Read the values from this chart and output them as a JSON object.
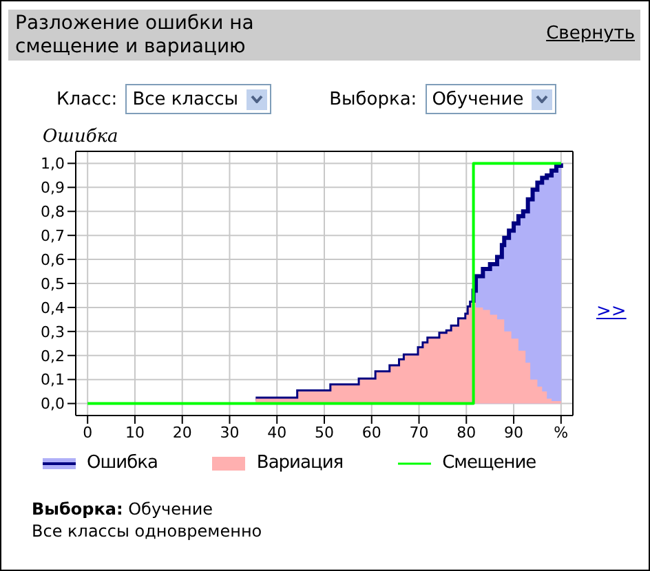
{
  "chart_data": {
    "type": "area",
    "title": "Разложение ошибки на смещение и вариацию",
    "ylabel": "Ошибка",
    "annotations": [
      "Свернуть",
      "Класс:",
      "Все классы",
      "Выборка:",
      "Обучение",
      ">>",
      "Выборка:",
      "Обучение",
      "Все классы одновременно"
    ],
    "xlim": [
      -2.5,
      102.5
    ],
    "xticks": [
      0,
      10,
      20,
      30,
      40,
      50,
      60,
      70,
      80,
      90,
      {
        "value": 100,
        "label": "%"
      }
    ],
    "ylim": [
      -0.05,
      1.05
    ],
    "yticks": [
      {
        "value": 0,
        "label": "0,0"
      },
      {
        "value": 0.1,
        "label": "0,1"
      },
      {
        "value": 0.2,
        "label": "0,2"
      },
      {
        "value": 0.3,
        "label": "0,3"
      },
      {
        "value": 0.4,
        "label": "0,4"
      },
      {
        "value": 0.5,
        "label": "0,5"
      },
      {
        "value": 0.6,
        "label": "0,6"
      },
      {
        "value": 0.7,
        "label": "0,7"
      },
      {
        "value": 0.8,
        "label": "0,8"
      },
      {
        "value": 0.9,
        "label": "0,9"
      },
      {
        "value": 1,
        "label": "1,0"
      }
    ],
    "grid": true,
    "legend": "bottom",
    "series": [
      {
        "name": "Ошибка",
        "color": "#000080",
        "x": [
          35.5,
          44.5,
          44.5,
          51.5,
          51.5,
          57.5,
          57.5,
          61,
          61,
          64,
          64,
          66,
          66,
          67,
          67,
          70,
          70,
          71,
          71,
          72,
          72,
          74.5,
          74.5,
          76,
          76,
          77,
          77,
          78.5,
          78.5,
          80,
          80,
          80.5,
          80.5,
          81,
          81,
          81.5,
          81.5,
          82,
          82,
          83.5,
          83.5,
          85,
          85,
          86.5,
          86.5,
          87.5,
          87.5,
          88,
          88,
          89,
          89,
          90,
          90,
          91,
          91,
          92,
          92,
          93,
          93,
          94,
          94,
          95,
          95,
          96,
          96,
          97,
          97,
          98,
          98,
          99,
          99,
          100,
          100
        ],
        "values": [
          0.02,
          0.02,
          0.05,
          0.05,
          0.075,
          0.075,
          0.1,
          0.1,
          0.13,
          0.13,
          0.155,
          0.155,
          0.18,
          0.18,
          0.2,
          0.2,
          0.23,
          0.23,
          0.25,
          0.25,
          0.27,
          0.27,
          0.29,
          0.29,
          0.3,
          0.3,
          0.32,
          0.32,
          0.35,
          0.35,
          0.37,
          0.37,
          0.4,
          0.4,
          0.42,
          0.42,
          0.47,
          0.47,
          0.53,
          0.53,
          0.56,
          0.56,
          0.58,
          0.58,
          0.61,
          0.61,
          0.66,
          0.66,
          0.69,
          0.69,
          0.72,
          0.72,
          0.75,
          0.75,
          0.78,
          0.78,
          0.8,
          0.8,
          0.85,
          0.85,
          0.89,
          0.89,
          0.92,
          0.92,
          0.94,
          0.94,
          0.95,
          0.95,
          0.97,
          0.97,
          0.99,
          0.99,
          1.0
        ]
      },
      {
        "name": "Вариация",
        "color": "#ffb0b0",
        "x": [
          35.5,
          44.5,
          44.5,
          51.5,
          51.5,
          57.5,
          57.5,
          61,
          61,
          64,
          64,
          66,
          66,
          67,
          67,
          70,
          70,
          71,
          71,
          72,
          72,
          74.5,
          74.5,
          76,
          76,
          77,
          77,
          78.5,
          78.5,
          80,
          80,
          80.5,
          80.5,
          81,
          81,
          82,
          82,
          83.5,
          83.5,
          85,
          85,
          86.5,
          86.5,
          88,
          88,
          89.5,
          89.5,
          91,
          91,
          92.5,
          92.5,
          93.5,
          93.5,
          95,
          95,
          96,
          96,
          97,
          97,
          98,
          98,
          100,
          100
        ],
        "values": [
          0.02,
          0.02,
          0.05,
          0.05,
          0.075,
          0.075,
          0.1,
          0.1,
          0.13,
          0.13,
          0.155,
          0.155,
          0.18,
          0.18,
          0.2,
          0.2,
          0.23,
          0.23,
          0.25,
          0.25,
          0.27,
          0.27,
          0.29,
          0.29,
          0.3,
          0.3,
          0.32,
          0.32,
          0.35,
          0.35,
          0.37,
          0.37,
          0.4,
          0.4,
          0.42,
          0.42,
          0.4,
          0.4,
          0.39,
          0.39,
          0.37,
          0.37,
          0.35,
          0.35,
          0.3,
          0.3,
          0.27,
          0.27,
          0.22,
          0.22,
          0.17,
          0.17,
          0.1,
          0.1,
          0.07,
          0.07,
          0.05,
          0.05,
          0.02,
          0.02,
          0.01,
          0.01,
          0
        ]
      },
      {
        "name": "Смещение",
        "type": "line",
        "color": "#00ff00",
        "x": [
          0,
          81.5,
          81.5,
          100
        ],
        "values": [
          0,
          0,
          1,
          1
        ]
      }
    ]
  }
}
